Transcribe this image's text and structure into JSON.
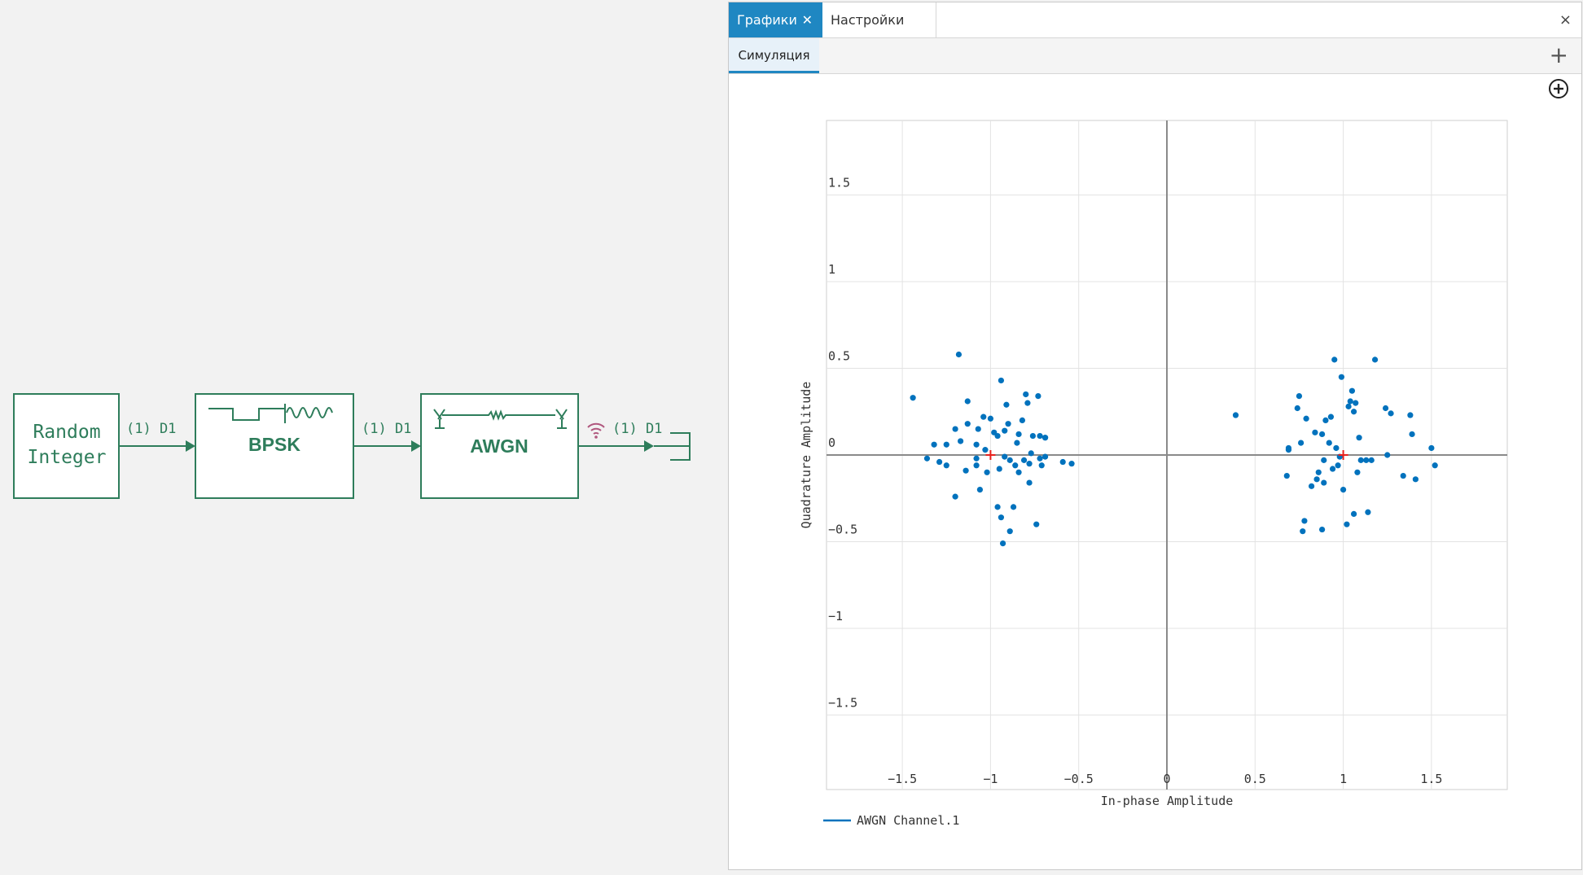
{
  "diagram": {
    "block_random": {
      "line1": "Random",
      "line2": "Integer"
    },
    "block_bpsk": {
      "label": "BPSK"
    },
    "block_awgn": {
      "label": "AWGN"
    },
    "wire1_label": "(1) D1",
    "wire2_label": "(1) D1",
    "wire3_label": "(1) D1",
    "colors": {
      "block": "#2e7d5b",
      "signal_icon": "#b0577e"
    },
    "icons": [
      "bpsk-waveform-icon",
      "awgn-channel-icon",
      "wireless-signal-icon"
    ]
  },
  "window": {
    "tabs": [
      {
        "label": "Графики",
        "active": true,
        "closable": true
      },
      {
        "label": "Настройки",
        "active": false
      }
    ],
    "close_label": "×",
    "subtabs": [
      {
        "label": "Симуляция",
        "active": true
      }
    ],
    "add_tab_label": "+",
    "icons": [
      "close-icon",
      "plus-icon",
      "zoom-in-icon"
    ],
    "accent": "#1f87c2"
  },
  "chart_data": {
    "type": "scatter",
    "title": "",
    "xlabel": "In-phase Amplitude",
    "ylabel": "Quadrature Amplitude",
    "xlim": [
      -1.93,
      1.93
    ],
    "ylim": [
      -1.93,
      1.93
    ],
    "x_ticks": [
      "−1.5",
      "−1",
      "−0.5",
      "0",
      "0.5",
      "1",
      "1.5"
    ],
    "y_ticks": [
      "1.5",
      "1",
      "0.5",
      "0",
      "−0.5",
      "−1",
      "−1.5"
    ],
    "grid": true,
    "legend": {
      "placement": "bottom-left",
      "entries": [
        "AWGN Channel.1"
      ]
    },
    "point_color": "#0072bd",
    "reference_color": "#e8201c",
    "reference_points": [
      {
        "x": -1,
        "y": 0
      },
      {
        "x": 1,
        "y": 0
      }
    ],
    "series": [
      {
        "name": "AWGN Channel.1",
        "x": [
          -1.18,
          -1.44,
          -1.36,
          -1.13,
          -1.2,
          -1.2,
          -1.14,
          -1.13,
          -1.08,
          -1.08,
          -1.07,
          -1.06,
          -1.03,
          -1.02,
          -1.0,
          -0.98,
          -0.96,
          -0.96,
          -0.95,
          -0.94,
          -0.94,
          -0.93,
          -0.92,
          -0.91,
          -0.9,
          -0.89,
          -0.89,
          -0.87,
          -0.85,
          -0.84,
          -0.82,
          -0.81,
          -0.8,
          -0.79,
          -0.78,
          -0.78,
          -0.77,
          -0.76,
          -0.74,
          -0.73,
          -0.72,
          -0.72,
          -0.71,
          -0.69,
          -0.69,
          -0.69,
          -0.59,
          -0.54,
          -1.32,
          -1.29,
          -1.25,
          -1.25,
          -1.17,
          -1.08,
          -1.04,
          -0.92,
          -0.86,
          -0.84,
          0.39,
          0.68,
          0.69,
          0.69,
          0.74,
          0.75,
          0.76,
          0.77,
          0.79,
          0.82,
          0.84,
          0.86,
          0.88,
          0.89,
          0.89,
          0.9,
          0.92,
          0.93,
          0.94,
          0.95,
          0.96,
          0.97,
          0.99,
          1.0,
          1.02,
          1.04,
          1.05,
          1.06,
          1.06,
          1.08,
          1.09,
          1.1,
          1.13,
          1.18,
          1.24,
          1.25,
          1.27,
          1.34,
          1.38,
          1.39,
          1.41,
          1.5,
          1.52,
          0.78,
          0.85,
          0.88,
          1.03,
          1.07,
          1.14,
          1.16,
          0.98
        ],
        "y": [
          0.58,
          0.33,
          -0.02,
          0.18,
          0.15,
          -0.24,
          -0.09,
          0.31,
          -0.06,
          0.06,
          0.15,
          -0.2,
          0.03,
          -0.1,
          0.21,
          0.13,
          0.11,
          -0.3,
          -0.08,
          0.43,
          -0.36,
          -0.51,
          -0.01,
          0.29,
          0.18,
          -0.03,
          -0.44,
          -0.3,
          0.07,
          0.12,
          0.2,
          -0.03,
          0.35,
          0.3,
          -0.05,
          -0.16,
          0.01,
          0.11,
          -0.4,
          0.34,
          0.11,
          -0.02,
          -0.06,
          0.1,
          0.1,
          -0.01,
          -0.04,
          -0.05,
          0.06,
          -0.04,
          0.06,
          -0.06,
          0.08,
          -0.02,
          0.22,
          0.14,
          -0.06,
          -0.1,
          0.23,
          -0.12,
          0.03,
          0.04,
          0.27,
          0.34,
          0.07,
          -0.44,
          0.21,
          -0.18,
          0.13,
          -0.1,
          -0.43,
          -0.16,
          -0.03,
          0.2,
          0.07,
          0.22,
          -0.08,
          0.55,
          0.04,
          -0.06,
          0.45,
          -0.2,
          -0.4,
          0.31,
          0.37,
          0.25,
          -0.34,
          -0.1,
          0.1,
          -0.03,
          -0.03,
          0.55,
          0.27,
          0.0,
          0.24,
          -0.12,
          0.23,
          0.12,
          -0.14,
          0.04,
          -0.06,
          -0.38,
          -0.14,
          0.12,
          0.28,
          0.3,
          -0.33,
          -0.03,
          -0.01
        ]
      }
    ]
  }
}
